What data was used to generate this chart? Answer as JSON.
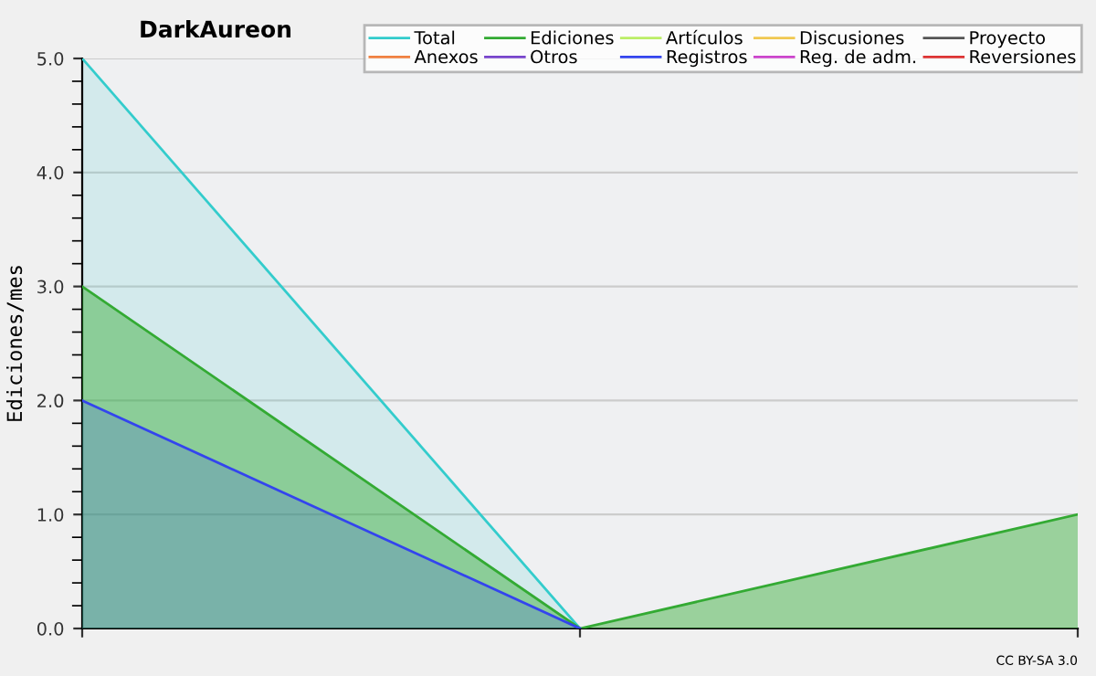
{
  "chart_data": {
    "type": "area",
    "title": "DarkAureon",
    "ylabel": "Ediciones/mes",
    "categories": [
      null,
      null,
      null
    ],
    "series": [
      {
        "name": "Total",
        "color": "#33cccc",
        "values": [
          5,
          0,
          null
        ]
      },
      {
        "name": "Ediciones",
        "color": "#33aa33",
        "values": [
          3,
          0,
          1
        ]
      },
      {
        "name": "Artículos",
        "color": "#bbee66",
        "values": [
          null,
          null,
          null
        ]
      },
      {
        "name": "Discusiones",
        "color": "#f0c850",
        "values": [
          null,
          null,
          null
        ]
      },
      {
        "name": "Proyecto",
        "color": "#555555",
        "values": [
          null,
          null,
          null
        ]
      },
      {
        "name": "Anexos",
        "color": "#f08040",
        "values": [
          null,
          null,
          null
        ]
      },
      {
        "name": "Otros",
        "color": "#7744cc",
        "values": [
          null,
          null,
          null
        ]
      },
      {
        "name": "Registros",
        "color": "#3344ee",
        "values": [
          2,
          0,
          null
        ]
      },
      {
        "name": "Reg. de adm.",
        "color": "#cc44cc",
        "values": [
          null,
          null,
          null
        ]
      },
      {
        "name": "Reversiones",
        "color": "#dd3333",
        "values": [
          null,
          null,
          null
        ]
      }
    ],
    "ylim": [
      0,
      5
    ],
    "yticks": [
      {
        "value": 0,
        "label": "0.0"
      },
      {
        "value": 0.2,
        "label": null
      },
      {
        "value": 0.4,
        "label": null
      },
      {
        "value": 0.6,
        "label": null
      },
      {
        "value": 0.8,
        "label": null
      },
      {
        "value": 1,
        "label": "1.0"
      },
      {
        "value": 1.2,
        "label": null
      },
      {
        "value": 1.4,
        "label": null
      },
      {
        "value": 1.6,
        "label": null
      },
      {
        "value": 1.8,
        "label": null
      },
      {
        "value": 2,
        "label": "2.0"
      },
      {
        "value": 2.2,
        "label": null
      },
      {
        "value": 2.4,
        "label": null
      },
      {
        "value": 2.6,
        "label": null
      },
      {
        "value": 2.8,
        "label": null
      },
      {
        "value": 3,
        "label": "3.0"
      },
      {
        "value": 3.2,
        "label": null
      },
      {
        "value": 3.4,
        "label": null
      },
      {
        "value": 3.6,
        "label": null
      },
      {
        "value": 3.8,
        "label": null
      },
      {
        "value": 4,
        "label": "4.0"
      },
      {
        "value": 4.2,
        "label": null
      },
      {
        "value": 4.4,
        "label": null
      },
      {
        "value": 4.6,
        "label": null
      },
      {
        "value": 4.8,
        "label": null
      },
      {
        "value": 5,
        "label": "5.0"
      }
    ],
    "grid": "y",
    "legend": "top right",
    "annotations": [
      "CC BY-SA 3.0"
    ]
  }
}
